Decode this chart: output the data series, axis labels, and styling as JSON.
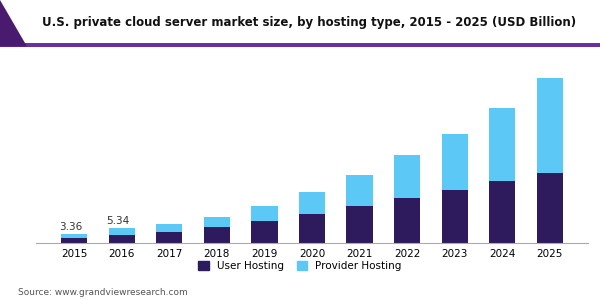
{
  "title": "U.S. private cloud server market size, by hosting type, 2015 - 2025 (USD Billion)",
  "years": [
    2015,
    2016,
    2017,
    2018,
    2019,
    2020,
    2021,
    2022,
    2023,
    2024,
    2025
  ],
  "user_hosting": [
    1.8,
    3.0,
    4.2,
    5.8,
    8.0,
    10.5,
    13.5,
    16.5,
    19.5,
    22.5,
    25.5
  ],
  "provider_hosting": [
    1.56,
    2.34,
    2.8,
    3.8,
    5.5,
    8.0,
    11.5,
    15.5,
    20.5,
    27.0,
    35.0
  ],
  "annotations": [
    {
      "year_idx": 0,
      "text": "3.36"
    },
    {
      "year_idx": 1,
      "text": "5.34"
    }
  ],
  "user_hosting_color": "#2d1b5e",
  "provider_hosting_color": "#5bc8f5",
  "background_color": "#ffffff",
  "title_fontsize": 8.5,
  "bar_width": 0.55,
  "source_text": "Source: www.grandviewresearch.com",
  "legend_user": "User Hosting",
  "legend_provider": "Provider Hosting",
  "header_left_color": "#4a1a6e",
  "header_accent_color": "#3a1858",
  "ylim": [
    0,
    68
  ]
}
